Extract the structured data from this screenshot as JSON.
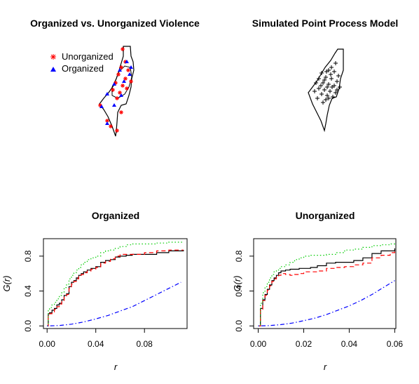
{
  "chart_data": [
    {
      "type": "scatter",
      "title": "Organized vs. Unorganized Violence",
      "xlabel": "",
      "ylabel": "",
      "map": "outline of Israel / Palestine",
      "legend_position": "top-left",
      "series": [
        {
          "name": "Unorganized",
          "marker": "asterisk",
          "color": "#ff0000"
        },
        {
          "name": "Organized",
          "marker": "triangle",
          "color": "#0000ff"
        }
      ]
    },
    {
      "type": "scatter",
      "title": "Simulated Point Process Model",
      "xlabel": "",
      "ylabel": "",
      "map": "outline of Israel / Palestine",
      "series": [
        {
          "marker": "plus",
          "color": "#000000"
        }
      ]
    },
    {
      "type": "line",
      "title": "Organized",
      "xlabel": "r",
      "ylabel": "G(r)",
      "xlim": [
        -0.003,
        0.115
      ],
      "ylim": [
        -0.03,
        1.0
      ],
      "xticks": [
        "0.00",
        "0.04",
        "0.08"
      ],
      "xtick_values": [
        0,
        0.04,
        0.08
      ],
      "yticks": [
        "0.0",
        "0.4",
        "0.8"
      ],
      "ytick_values": [
        0,
        0.4,
        0.8
      ],
      "series": [
        {
          "style": "solid",
          "color": "#000000",
          "x": [
            0,
            0.001,
            0.002,
            0.004,
            0.006,
            0.008,
            0.01,
            0.012,
            0.014,
            0.016,
            0.018,
            0.02,
            0.022,
            0.024,
            0.026,
            0.028,
            0.03,
            0.033,
            0.036,
            0.04,
            0.044,
            0.048,
            0.052,
            0.056,
            0.06,
            0.065,
            0.07,
            0.08,
            0.09,
            0.1,
            0.112
          ],
          "y": [
            0,
            0.14,
            0.15,
            0.18,
            0.2,
            0.24,
            0.26,
            0.3,
            0.35,
            0.37,
            0.45,
            0.5,
            0.52,
            0.55,
            0.58,
            0.6,
            0.62,
            0.64,
            0.66,
            0.68,
            0.73,
            0.75,
            0.76,
            0.79,
            0.8,
            0.81,
            0.82,
            0.82,
            0.84,
            0.86,
            0.87
          ]
        },
        {
          "style": "dashed",
          "color": "#ff0000",
          "x": [
            0,
            0.001,
            0.002,
            0.004,
            0.006,
            0.008,
            0.01,
            0.012,
            0.014,
            0.016,
            0.018,
            0.02,
            0.022,
            0.024,
            0.026,
            0.028,
            0.03,
            0.033,
            0.036,
            0.04,
            0.044,
            0.048,
            0.052,
            0.056,
            0.06,
            0.065,
            0.07,
            0.08,
            0.09,
            0.1,
            0.112
          ],
          "y": [
            0,
            0.12,
            0.14,
            0.16,
            0.19,
            0.22,
            0.25,
            0.28,
            0.33,
            0.36,
            0.43,
            0.48,
            0.51,
            0.54,
            0.57,
            0.59,
            0.61,
            0.63,
            0.65,
            0.67,
            0.72,
            0.74,
            0.77,
            0.8,
            0.82,
            0.82,
            0.82,
            0.84,
            0.86,
            0.87,
            0.87
          ]
        },
        {
          "style": "dotted",
          "color": "#00cc00",
          "x": [
            0,
            0.001,
            0.002,
            0.004,
            0.006,
            0.008,
            0.01,
            0.012,
            0.014,
            0.016,
            0.018,
            0.02,
            0.022,
            0.024,
            0.026,
            0.028,
            0.03,
            0.033,
            0.036,
            0.04,
            0.044,
            0.048,
            0.052,
            0.056,
            0.06,
            0.065,
            0.07,
            0.08,
            0.09,
            0.1,
            0.112
          ],
          "y": [
            0,
            0.19,
            0.21,
            0.24,
            0.27,
            0.31,
            0.35,
            0.38,
            0.44,
            0.48,
            0.54,
            0.58,
            0.61,
            0.64,
            0.67,
            0.7,
            0.73,
            0.76,
            0.78,
            0.8,
            0.84,
            0.86,
            0.87,
            0.89,
            0.91,
            0.93,
            0.94,
            0.94,
            0.95,
            0.96,
            0.96
          ]
        },
        {
          "style": "dotdash",
          "color": "#0000ff",
          "x": [
            0,
            0.01,
            0.02,
            0.03,
            0.04,
            0.05,
            0.06,
            0.07,
            0.08,
            0.09,
            0.1,
            0.11
          ],
          "y": [
            0,
            0.005,
            0.02,
            0.045,
            0.08,
            0.12,
            0.17,
            0.22,
            0.29,
            0.36,
            0.43,
            0.5
          ]
        }
      ]
    },
    {
      "type": "line",
      "title": "Unorganized",
      "xlabel": "r",
      "ylabel": "G(r)",
      "xlim": [
        -0.002,
        0.0605
      ],
      "ylim": [
        -0.03,
        1.0
      ],
      "xticks": [
        "0.00",
        "0.02",
        "0.04",
        "0.06"
      ],
      "xtick_values": [
        0,
        0.02,
        0.04,
        0.06
      ],
      "yticks": [
        "0.0",
        "0.4",
        "0.8"
      ],
      "ytick_values": [
        0,
        0.4,
        0.8
      ],
      "series": [
        {
          "style": "solid",
          "color": "#000000",
          "x": [
            0,
            0.001,
            0.002,
            0.003,
            0.004,
            0.005,
            0.006,
            0.007,
            0.008,
            0.009,
            0.01,
            0.012,
            0.014,
            0.016,
            0.018,
            0.02,
            0.023,
            0.026,
            0.03,
            0.034,
            0.038,
            0.042,
            0.046,
            0.05,
            0.054,
            0.058,
            0.06
          ],
          "y": [
            0,
            0.2,
            0.3,
            0.36,
            0.42,
            0.47,
            0.52,
            0.55,
            0.58,
            0.61,
            0.63,
            0.64,
            0.65,
            0.65,
            0.66,
            0.66,
            0.67,
            0.69,
            0.72,
            0.73,
            0.73,
            0.75,
            0.78,
            0.83,
            0.86,
            0.86,
            0.89
          ]
        },
        {
          "style": "dashed",
          "color": "#ff0000",
          "x": [
            0,
            0.001,
            0.002,
            0.003,
            0.004,
            0.005,
            0.006,
            0.007,
            0.008,
            0.009,
            0.01,
            0.012,
            0.014,
            0.016,
            0.018,
            0.02,
            0.023,
            0.026,
            0.03,
            0.034,
            0.038,
            0.042,
            0.046,
            0.05,
            0.054,
            0.058,
            0.06
          ],
          "y": [
            0,
            0.19,
            0.29,
            0.35,
            0.41,
            0.46,
            0.51,
            0.54,
            0.56,
            0.58,
            0.6,
            0.59,
            0.58,
            0.59,
            0.6,
            0.62,
            0.62,
            0.63,
            0.66,
            0.67,
            0.68,
            0.7,
            0.72,
            0.78,
            0.81,
            0.84,
            0.86
          ]
        },
        {
          "style": "dotted",
          "color": "#00cc00",
          "x": [
            0,
            0.001,
            0.002,
            0.003,
            0.004,
            0.005,
            0.006,
            0.007,
            0.008,
            0.009,
            0.01,
            0.012,
            0.014,
            0.016,
            0.018,
            0.02,
            0.023,
            0.026,
            0.03,
            0.034,
            0.038,
            0.042,
            0.046,
            0.05,
            0.054,
            0.058,
            0.06
          ],
          "y": [
            0,
            0.26,
            0.38,
            0.45,
            0.5,
            0.55,
            0.59,
            0.62,
            0.64,
            0.66,
            0.68,
            0.7,
            0.73,
            0.76,
            0.78,
            0.8,
            0.81,
            0.81,
            0.82,
            0.84,
            0.87,
            0.88,
            0.9,
            0.92,
            0.93,
            0.94,
            0.95
          ]
        },
        {
          "style": "dotdash",
          "color": "#0000ff",
          "x": [
            0,
            0.005,
            0.01,
            0.015,
            0.02,
            0.025,
            0.03,
            0.035,
            0.04,
            0.045,
            0.05,
            0.055,
            0.06
          ],
          "y": [
            0,
            0.004,
            0.015,
            0.033,
            0.06,
            0.09,
            0.13,
            0.18,
            0.23,
            0.29,
            0.36,
            0.44,
            0.52
          ]
        }
      ]
    }
  ]
}
